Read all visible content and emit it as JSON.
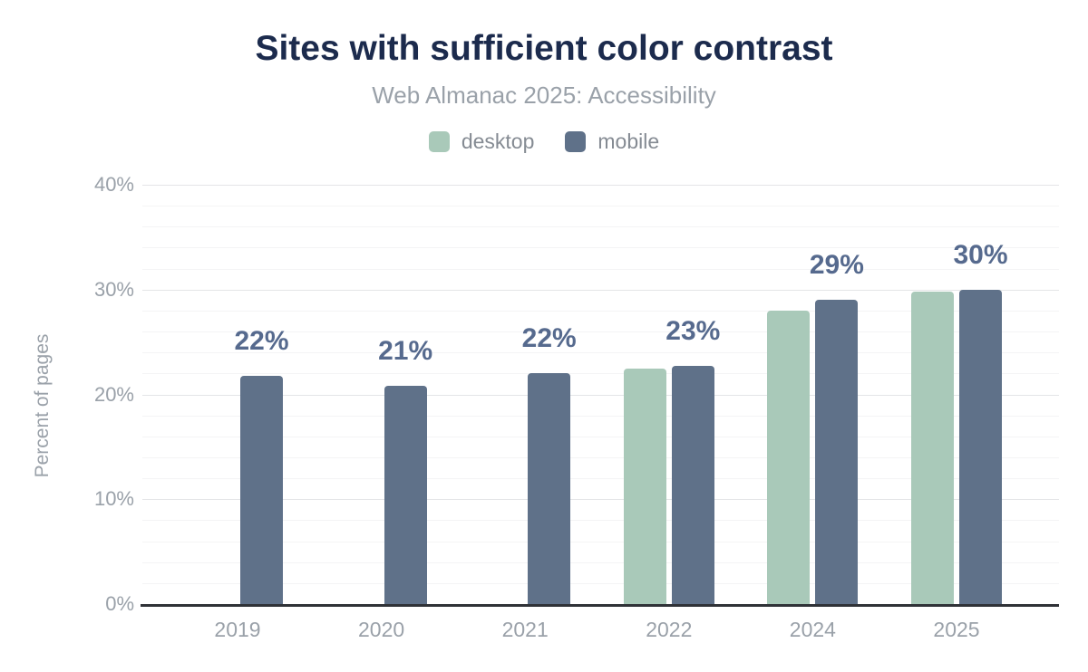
{
  "header": {
    "title": "Sites with sufficient color contrast",
    "subtitle": "Web Almanac 2025: Accessibility"
  },
  "legend": {
    "items": [
      {
        "label": "desktop",
        "color": "#a9c9b9"
      },
      {
        "label": "mobile",
        "color": "#5f7189"
      }
    ]
  },
  "chart_data": {
    "type": "bar",
    "title": "Sites with sufficient color contrast",
    "subtitle": "Web Almanac 2025: Accessibility",
    "xlabel": "",
    "ylabel": "Percent of pages",
    "ylim": [
      0,
      40
    ],
    "grid": true,
    "gridline_minor_step_pct": 2,
    "gridline_major_step_pct": 10,
    "legend_position": "top",
    "categories": [
      "2019",
      "2020",
      "2021",
      "2022",
      "2024",
      "2025"
    ],
    "series": [
      {
        "name": "desktop",
        "color": "#a9c9b9",
        "values": [
          null,
          null,
          null,
          22.5,
          28,
          29.8
        ]
      },
      {
        "name": "mobile",
        "color": "#5f7189",
        "values": [
          21.8,
          20.8,
          22,
          22.7,
          29,
          30
        ]
      }
    ],
    "bar_labels": [
      "22%",
      "21%",
      "22%",
      "23%",
      "29%",
      "30%"
    ],
    "bar_labels_series": "mobile",
    "yticks": [
      {
        "value": 0,
        "label": "0%"
      },
      {
        "value": 10,
        "label": "10%"
      },
      {
        "value": 20,
        "label": "20%"
      },
      {
        "value": 30,
        "label": "30%"
      },
      {
        "value": 40,
        "label": "40%"
      }
    ]
  },
  "colors": {
    "title": "#1c2b4d",
    "subtitle": "#9aa1a9",
    "legend_text": "#858b93",
    "axis_text": "#9aa1a9",
    "bar_label": "#566a8e",
    "gridline_major": "#e4e5e7",
    "gridline_minor": "#f4f4f5",
    "axis_line": "#2f3237"
  }
}
